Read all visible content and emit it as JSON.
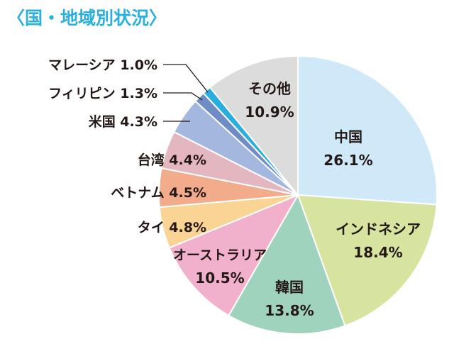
{
  "chart_data": {
    "type": "pie",
    "title": "〈国・地域別状況〉",
    "start_angle_deg": 0,
    "direction": "clockwise",
    "slices": [
      {
        "name": "中国",
        "pct": "26.1%",
        "value": 26.1,
        "color": "#cfe9f8"
      },
      {
        "name": "インドネシア",
        "pct": "18.4%",
        "value": 18.4,
        "color": "#d6e4a0"
      },
      {
        "name": "韓国",
        "pct": "13.8%",
        "value": 13.8,
        "color": "#9fd3bd"
      },
      {
        "name": "オーストラリア",
        "pct": "10.5%",
        "value": 10.5,
        "color": "#f1b0cc"
      },
      {
        "name": "タイ",
        "pct": "4.8%",
        "value": 4.8,
        "color": "#f9d494"
      },
      {
        "name": "ベトナム",
        "pct": "4.5%",
        "value": 4.5,
        "color": "#f2ab8b"
      },
      {
        "name": "台湾",
        "pct": "4.4%",
        "value": 4.4,
        "color": "#e3b6c0"
      },
      {
        "name": "米国",
        "pct": "4.3%",
        "value": 4.3,
        "color": "#a3b7df"
      },
      {
        "name": "フィリピン",
        "pct": "1.3%",
        "value": 1.3,
        "color": "#6f8cc6"
      },
      {
        "name": "マレーシア",
        "pct": "1.0%",
        "value": 1.0,
        "color": "#29aee0"
      },
      {
        "name": "その他",
        "pct": "10.9%",
        "value": 10.9,
        "color": "#dcdcdc"
      }
    ]
  }
}
